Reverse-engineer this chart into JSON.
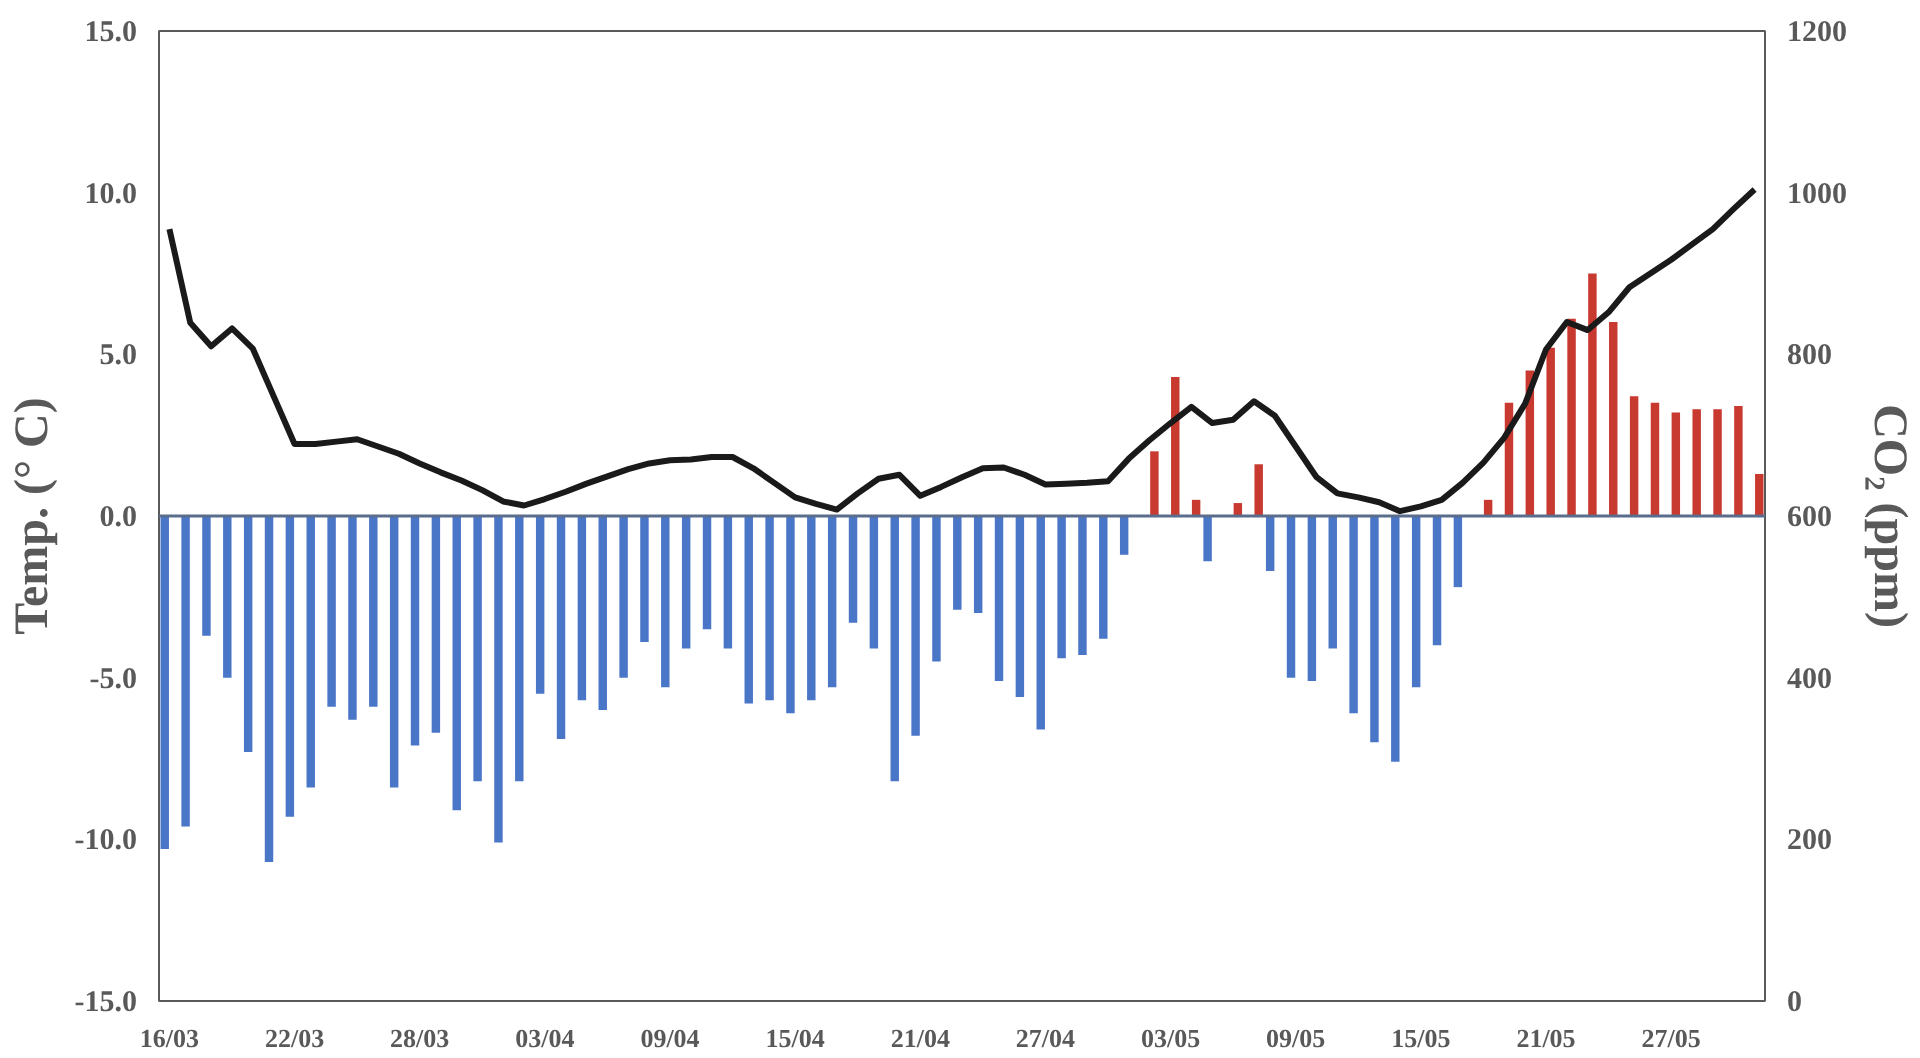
{
  "chart_data": {
    "type": "bar",
    "ylabel": "Temp. (° C)",
    "y2label": "CO₂ (ppm)",
    "categories": [
      "16/03",
      null,
      null,
      null,
      null,
      null,
      "22/03",
      null,
      null,
      null,
      null,
      null,
      "28/03",
      null,
      null,
      null,
      null,
      null,
      "03/04",
      null,
      null,
      null,
      null,
      null,
      "09/04",
      null,
      null,
      null,
      null,
      null,
      "15/04",
      null,
      null,
      null,
      null,
      null,
      "21/04",
      null,
      null,
      null,
      null,
      null,
      "27/04",
      null,
      null,
      null,
      null,
      null,
      "03/05",
      null,
      null,
      null,
      null,
      null,
      "09/05",
      null,
      null,
      null,
      null,
      null,
      "15/05",
      null,
      null,
      null,
      null,
      null,
      "21/05",
      null,
      null,
      null,
      null,
      null,
      "27/05",
      null,
      null,
      null,
      null
    ],
    "series": [
      {
        "color": "#4a76c8",
        "values": [
          -10.3,
          -9.6,
          -3.7,
          -5.0,
          -7.3,
          -10.7,
          -9.3,
          -8.4,
          -5.9,
          -6.3,
          -5.9,
          -8.4,
          -7.1,
          -6.7,
          -9.1,
          -8.2,
          -10.1,
          -8.2,
          -5.5,
          -6.9,
          -5.7,
          -6.0,
          -5.0,
          -3.9,
          -5.3,
          -4.1,
          -3.5,
          -4.1,
          -5.8,
          -5.7,
          -6.1,
          -5.7,
          -5.3,
          -3.3,
          -4.1,
          -8.2,
          -6.8,
          -4.5,
          -2.9,
          -3.0,
          -5.1,
          -5.6,
          -6.6,
          -4.4,
          -4.3,
          -3.8,
          -1.2,
          null,
          null,
          null,
          -1.4,
          null,
          null,
          -1.7,
          -5.0,
          -5.1,
          -4.1,
          -6.1,
          -7.0,
          -7.6,
          -5.3,
          -4.0,
          -2.2,
          null,
          null,
          null,
          null,
          null,
          null,
          null,
          null,
          null,
          null,
          null,
          null,
          null,
          null
        ]
      },
      {
        "color": "#c8392f",
        "values": [
          null,
          null,
          null,
          null,
          null,
          null,
          null,
          null,
          null,
          null,
          null,
          null,
          null,
          null,
          null,
          null,
          null,
          null,
          null,
          null,
          null,
          null,
          null,
          null,
          null,
          null,
          null,
          null,
          null,
          null,
          null,
          null,
          null,
          null,
          null,
          null,
          null,
          null,
          null,
          null,
          null,
          null,
          null,
          null,
          null,
          null,
          null,
          2.0,
          4.3,
          0.5,
          null,
          0.4,
          1.6,
          null,
          null,
          null,
          null,
          null,
          null,
          null,
          null,
          null,
          null,
          0.5,
          3.5,
          4.5,
          5.2,
          6.1,
          7.5,
          6.0,
          3.7,
          3.5,
          3.2,
          3.3,
          3.3,
          3.4,
          1.3
        ]
      },
      {
        "type": "line",
        "axis": "y2",
        "color": "#1a1a1a",
        "values": [
          955,
          839,
          810,
          832,
          807,
          748,
          689,
          689,
          692,
          695,
          686,
          677,
          665,
          654,
          644,
          632,
          618,
          613,
          621,
          630,
          640,
          649,
          658,
          665,
          669,
          670,
          673,
          673,
          659,
          641,
          623,
          615,
          608,
          628,
          646,
          651,
          625,
          636,
          648,
          659,
          660,
          651,
          639,
          640,
          641,
          643,
          671,
          694,
          715,
          735,
          715,
          719,
          742,
          724,
          686,
          648,
          628,
          623,
          617,
          606,
          612,
          620,
          641,
          666,
          697,
          739,
          806,
          840,
          830,
          852,
          883,
          900,
          917,
          936,
          955,
          980,
          1004
        ]
      }
    ],
    "ylim": [
      -15,
      15
    ],
    "yticks": [
      {
        "value": -15,
        "label": "-15.0"
      },
      {
        "value": -10,
        "label": "-10.0"
      },
      {
        "value": -5,
        "label": "-5.0"
      },
      {
        "value": 0,
        "label": "0.0"
      },
      {
        "value": 5,
        "label": "5.0"
      },
      {
        "value": 10,
        "label": "10.0"
      },
      {
        "value": 15,
        "label": "15.0"
      }
    ],
    "y2lim": [
      0,
      1200
    ],
    "y2ticks": [
      0,
      200,
      400,
      600,
      800,
      1000,
      1200
    ],
    "grid": false,
    "ref_lines": [
      {
        "axis": "y",
        "value": 0,
        "color": "#5a6d8c"
      }
    ],
    "marker": "none",
    "line_style": "solid"
  }
}
